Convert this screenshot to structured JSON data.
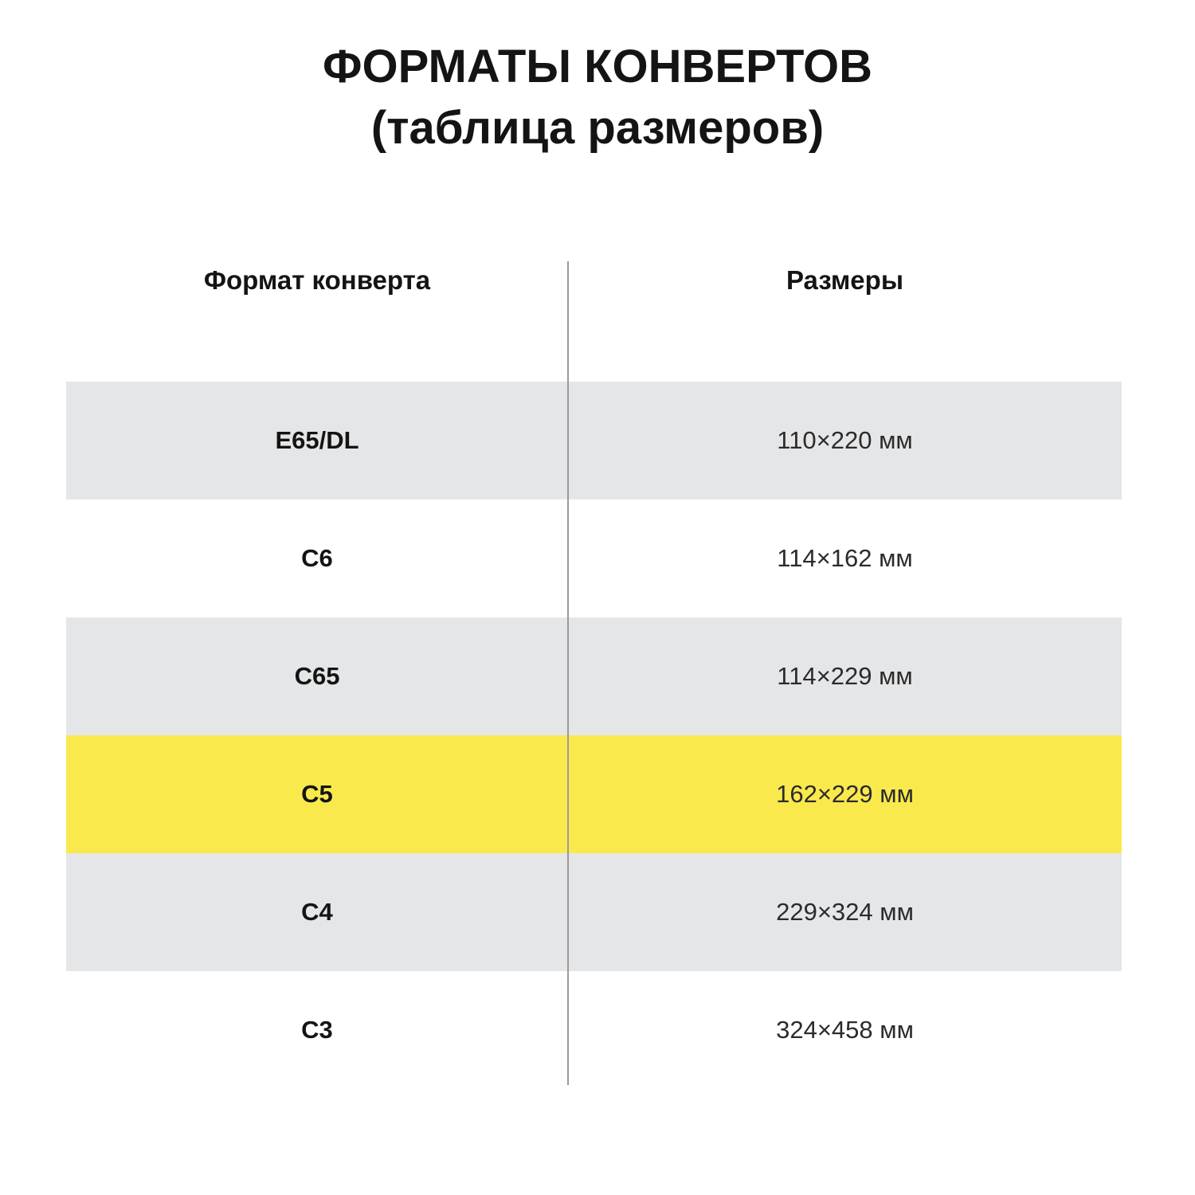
{
  "title": {
    "line1": "ФОРМАТЫ КОНВЕРТОВ",
    "line2": "(таблица размеров)"
  },
  "table": {
    "columns": [
      {
        "label": "Формат конверта"
      },
      {
        "label": "Размеры"
      }
    ],
    "rows": [
      {
        "format": "E65/DL",
        "size": "110×220 мм",
        "highlight": "gray"
      },
      {
        "format": "C6",
        "size": "114×162 мм",
        "highlight": "white"
      },
      {
        "format": "C65",
        "size": "114×229 мм",
        "highlight": "gray"
      },
      {
        "format": "C5",
        "size": "162×229 мм",
        "highlight": "yellow"
      },
      {
        "format": "C4",
        "size": "229×324 мм",
        "highlight": "gray"
      },
      {
        "format": "C3",
        "size": "324×458 мм",
        "highlight": "white"
      }
    ]
  },
  "chart_data": {
    "type": "table",
    "title": "ФОРМАТЫ КОНВЕРТОВ (таблица размеров)",
    "columns": [
      "Формат конверта",
      "Размеры"
    ],
    "rows": [
      [
        "E65/DL",
        "110×220 мм"
      ],
      [
        "C6",
        "114×162 мм"
      ],
      [
        "C65",
        "114×229 мм"
      ],
      [
        "C5",
        "162×229 мм"
      ],
      [
        "C4",
        "229×324 мм"
      ],
      [
        "C3",
        "324×458 мм"
      ]
    ],
    "highlighted_row": "C5",
    "layout": "two columns separated by vertical gray rule, zebra-striped rows, C5 row highlighted yellow"
  },
  "colors": {
    "row_gray": "#e5e6e8",
    "row_yellow": "#fae94d",
    "divider": "#9a9a9a",
    "text": "#141414"
  }
}
